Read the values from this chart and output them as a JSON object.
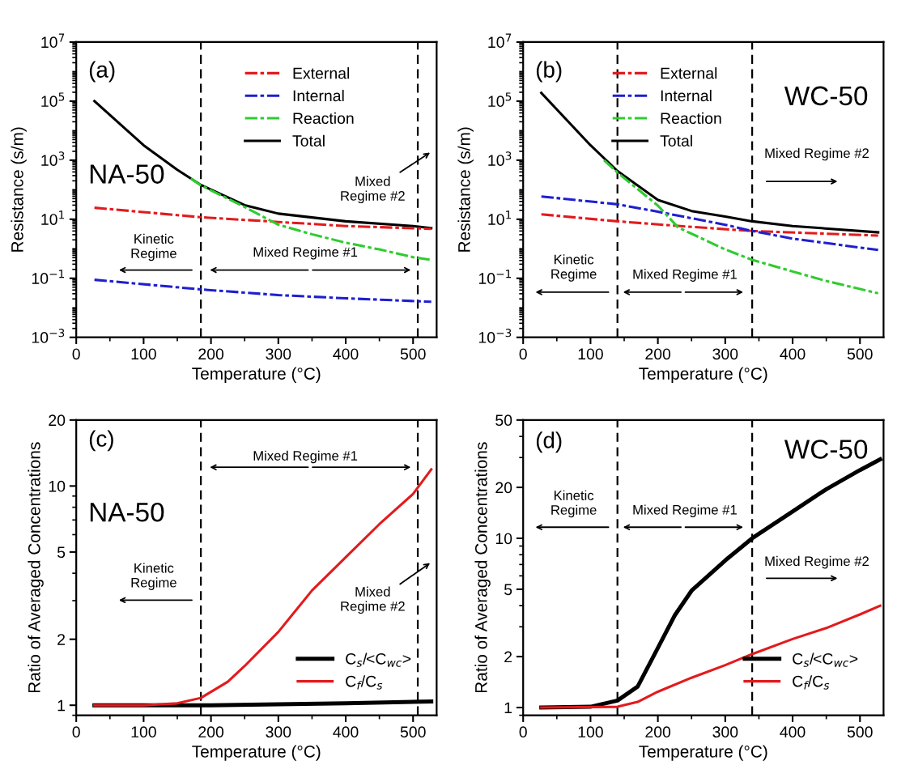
{
  "chart_data": [
    {
      "type": "line",
      "xlabel": "Temperature (°C)",
      "ylabel": "Resistance (s/m)",
      "log": "y",
      "legend": "top",
      "xlim": [
        0,
        535
      ],
      "xticks": [
        0,
        100,
        200,
        300,
        400,
        500
      ],
      "ylim": [
        0.001,
        10000000
      ],
      "yticks": [
        {
          "value": 0.001,
          "label": "10$^{−3}$"
        },
        {
          "value": 0.1,
          "label": "10$^{−1}$"
        },
        {
          "value": 10,
          "label": "10$^{1}$"
        },
        {
          "value": 1000,
          "label": "10$^{3}$"
        },
        {
          "value": 100000,
          "label": "10$^{5}$"
        },
        {
          "value": 10000000,
          "label": "10$^{7}$"
        }
      ],
      "series": [
        {
          "name": "External",
          "color": "#e31a1c",
          "line_style": "dashdot",
          "x": [
            27,
            185,
            300,
            400,
            527
          ],
          "values": [
            24.5,
            11.7,
            8.1,
            5.9,
            4.7
          ]
        },
        {
          "name": "Internal",
          "color": "#1f1fd0",
          "line_style": "dashdot",
          "x": [
            27,
            185,
            300,
            400,
            527
          ],
          "values": [
            0.089,
            0.042,
            0.027,
            0.021,
            0.016
          ]
        },
        {
          "name": "Reaction",
          "color": "#2ecc2e",
          "line_style": "dashdot",
          "x": [
            170,
            185,
            250,
            300,
            350,
            400,
            450,
            500,
            527
          ],
          "values": [
            240,
            140,
            26,
            6.5,
            3.1,
            1.6,
            0.95,
            0.52,
            0.42
          ]
        },
        {
          "name": "Total",
          "color": "#000000",
          "line_style": "solid",
          "x": [
            27,
            100,
            150,
            185,
            250,
            300,
            400,
            500,
            527
          ],
          "values": [
            100000,
            3200,
            470,
            145,
            30,
            15.5,
            8.5,
            5.9,
            5.0
          ]
        }
      ],
      "ref_lines": [
        {
          "axis": "x",
          "value": 185,
          "color": "#000000",
          "line_style": "dashed"
        },
        {
          "axis": "x",
          "value": 507,
          "color": "#000000",
          "line_style": "dashed"
        }
      ],
      "annotations": [
        "(a)",
        "NA-50",
        "Kinetic\nRegime",
        "Mixed Regime #1",
        "Mixed\nRegime #2"
      ]
    },
    {
      "type": "line",
      "xlabel": "Temperature (°C)",
      "ylabel": "Resistance (s/m)",
      "log": "y",
      "legend": "top",
      "xlim": [
        0,
        535
      ],
      "xticks": [
        0,
        100,
        200,
        300,
        400,
        500
      ],
      "ylim": [
        0.001,
        10000000
      ],
      "yticks": [
        {
          "value": 0.001,
          "label": "10$^{−3}$"
        },
        {
          "value": 0.1,
          "label": "10$^{−1}$"
        },
        {
          "value": 10,
          "label": "10$^{1}$"
        },
        {
          "value": 1000,
          "label": "10$^{3}$"
        },
        {
          "value": 100000,
          "label": "10$^{5}$"
        },
        {
          "value": 10000000,
          "label": "10$^{7}$"
        }
      ],
      "series": [
        {
          "name": "External",
          "color": "#e31a1c",
          "line_style": "dashdot",
          "x": [
            27,
            140,
            250,
            340,
            527
          ],
          "values": [
            14.7,
            8.5,
            5.5,
            4.0,
            2.8
          ]
        },
        {
          "name": "Internal",
          "color": "#1f1fd0",
          "line_style": "dashdot",
          "x": [
            27,
            140,
            200,
            300,
            340,
            400,
            527
          ],
          "values": [
            59,
            32,
            18,
            6.5,
            4.0,
            2.2,
            0.91
          ]
        },
        {
          "name": "Reaction",
          "color": "#2ecc2e",
          "line_style": "dashdot",
          "x": [
            120,
            140,
            200,
            230,
            300,
            340,
            400,
            450,
            527
          ],
          "values": [
            1000,
            380,
            29,
            5.3,
            0.95,
            0.42,
            0.17,
            0.081,
            0.031
          ]
        },
        {
          "name": "Total",
          "color": "#000000",
          "line_style": "solid",
          "x": [
            27,
            100,
            140,
            200,
            250,
            300,
            340,
            400,
            527
          ],
          "values": [
            190000,
            3200,
            430,
            45,
            19,
            12.3,
            8.5,
            5.9,
            3.6
          ]
        }
      ],
      "ref_lines": [
        {
          "axis": "x",
          "value": 140,
          "color": "#000000",
          "line_style": "dashed"
        },
        {
          "axis": "x",
          "value": 340,
          "color": "#000000",
          "line_style": "dashed"
        }
      ],
      "annotations": [
        "(b)",
        "WC-50",
        "Kinetic\nRegime",
        "Mixed Regime #1",
        "Mixed Regime #2"
      ]
    },
    {
      "type": "line",
      "xlabel": "Temperature (°C)",
      "ylabel": "Ratio of Averaged Concentrations",
      "log": "y",
      "legend": "bottom right",
      "xlim": [
        0,
        535
      ],
      "xticks": [
        0,
        100,
        200,
        300,
        400,
        500
      ],
      "ylim": [
        0.9,
        20
      ],
      "yticks": [
        1,
        2,
        5,
        10,
        20
      ],
      "series": [
        {
          "name": "C$_{s}$/<C$_{wc}$>",
          "color": "#000000",
          "line_style": "solid",
          "x": [
            27,
            200,
            300,
            400,
            527
          ],
          "values": [
            1.0,
            1.0,
            1.01,
            1.02,
            1.04
          ]
        },
        {
          "name": "C$_{f}$/C$_{s}$",
          "color": "#e31a1c",
          "line_style": "solid",
          "x": [
            27,
            100,
            150,
            185,
            225,
            250,
            300,
            350,
            400,
            450,
            500,
            527
          ],
          "values": [
            1.0,
            1.0,
            1.02,
            1.08,
            1.28,
            1.51,
            2.16,
            3.34,
            4.73,
            6.7,
            9.2,
            11.9
          ]
        }
      ],
      "ref_lines": [
        {
          "axis": "x",
          "value": 185,
          "color": "#000000",
          "line_style": "dashed"
        },
        {
          "axis": "x",
          "value": 507,
          "color": "#000000",
          "line_style": "dashed"
        }
      ],
      "annotations": [
        "(c)",
        "NA-50",
        "Kinetic\nRegime",
        "Mixed Regime #1",
        "Mixed\nRegime #2"
      ]
    },
    {
      "type": "line",
      "xlabel": "Temperature (°C)",
      "ylabel": "Ratio of Averaged Concentrations",
      "log": "y",
      "legend": "bottom right",
      "xlim": [
        0,
        535
      ],
      "xticks": [
        0,
        100,
        200,
        300,
        400,
        500
      ],
      "ylim": [
        0.9,
        50
      ],
      "yticks": [
        1,
        2,
        5,
        10,
        20,
        50
      ],
      "series": [
        {
          "name": "C$_{s}$/<C$_{wc}$>",
          "color": "#000000",
          "line_style": "solid",
          "x": [
            27,
            100,
            140,
            170,
            200,
            225,
            250,
            300,
            340,
            400,
            450,
            500,
            530
          ],
          "values": [
            1.0,
            1.01,
            1.1,
            1.33,
            2.25,
            3.5,
            4.9,
            7.4,
            10,
            14.4,
            19.5,
            25.3,
            29.3
          ]
        },
        {
          "name": "C$_{f}$/C$_{s}$",
          "color": "#e31a1c",
          "line_style": "solid",
          "x": [
            27,
            140,
            170,
            200,
            250,
            300,
            340,
            400,
            450,
            500,
            530
          ],
          "values": [
            1.0,
            1.01,
            1.08,
            1.24,
            1.5,
            1.78,
            2.07,
            2.54,
            2.95,
            3.55,
            4.0
          ]
        }
      ],
      "ref_lines": [
        {
          "axis": "x",
          "value": 140,
          "color": "#000000",
          "line_style": "dashed"
        },
        {
          "axis": "x",
          "value": 340,
          "color": "#000000",
          "line_style": "dashed"
        }
      ],
      "annotations": [
        "(d)",
        "WC-50",
        "Kinetic\nRegime",
        "Mixed Regime #1",
        "Mixed Regime #2"
      ]
    }
  ]
}
